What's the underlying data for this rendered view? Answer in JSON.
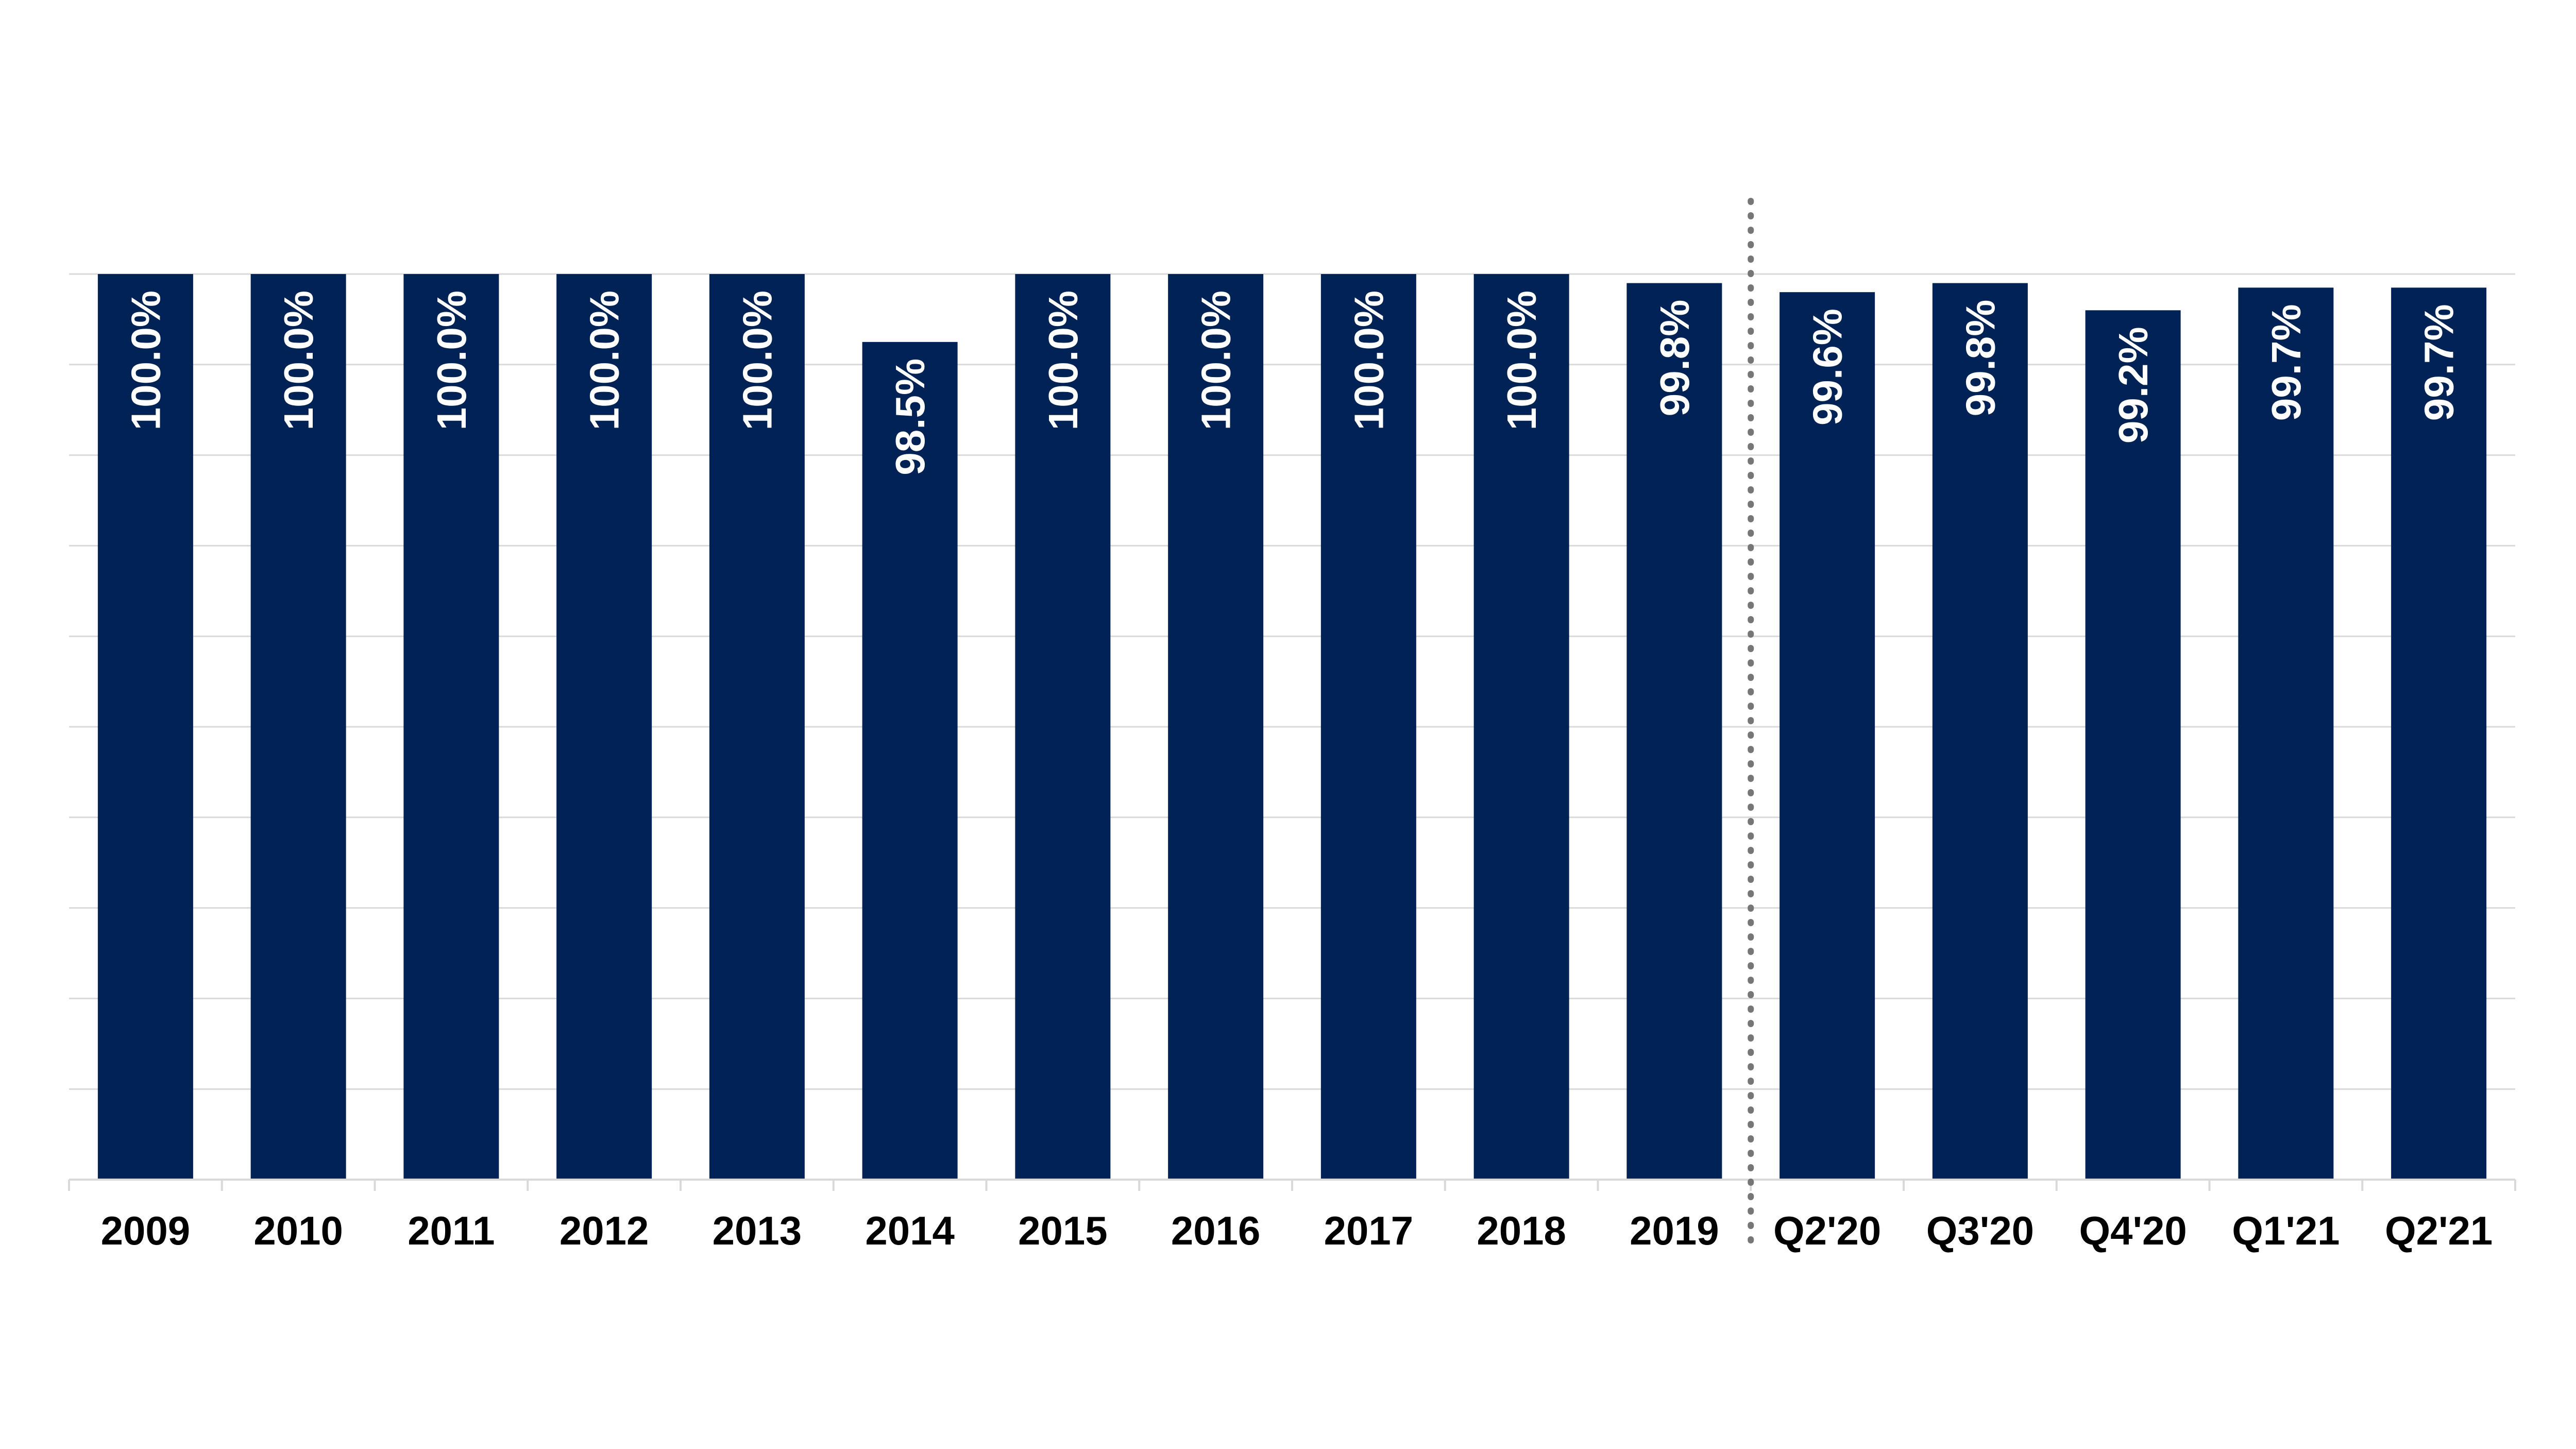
{
  "chart_data": {
    "type": "bar",
    "categories": [
      "2009",
      "2010",
      "2011",
      "2012",
      "2013",
      "2014",
      "2015",
      "2016",
      "2017",
      "2018",
      "2019",
      "Q2'20",
      "Q3'20",
      "Q4'20",
      "Q1'21",
      "Q2'21"
    ],
    "values": [
      100.0,
      100.0,
      100.0,
      100.0,
      100.0,
      98.5,
      100.0,
      100.0,
      100.0,
      100.0,
      99.8,
      99.6,
      99.8,
      99.2,
      99.7,
      99.7
    ],
    "data_labels": [
      "100.0%",
      "100.0%",
      "100.0%",
      "100.0%",
      "100.0%",
      "98.5%",
      "100.0%",
      "100.0%",
      "100.0%",
      "100.0%",
      "99.8%",
      "99.6%",
      "99.8%",
      "99.2%",
      "99.7%",
      "99.7%"
    ],
    "title": "",
    "xlabel": "",
    "ylabel": "",
    "ylim": [
      80,
      100
    ],
    "grid": true,
    "legend": "none",
    "divider_after_category": "2019",
    "bar_color": "#002255",
    "label_color": "#ffffff"
  }
}
